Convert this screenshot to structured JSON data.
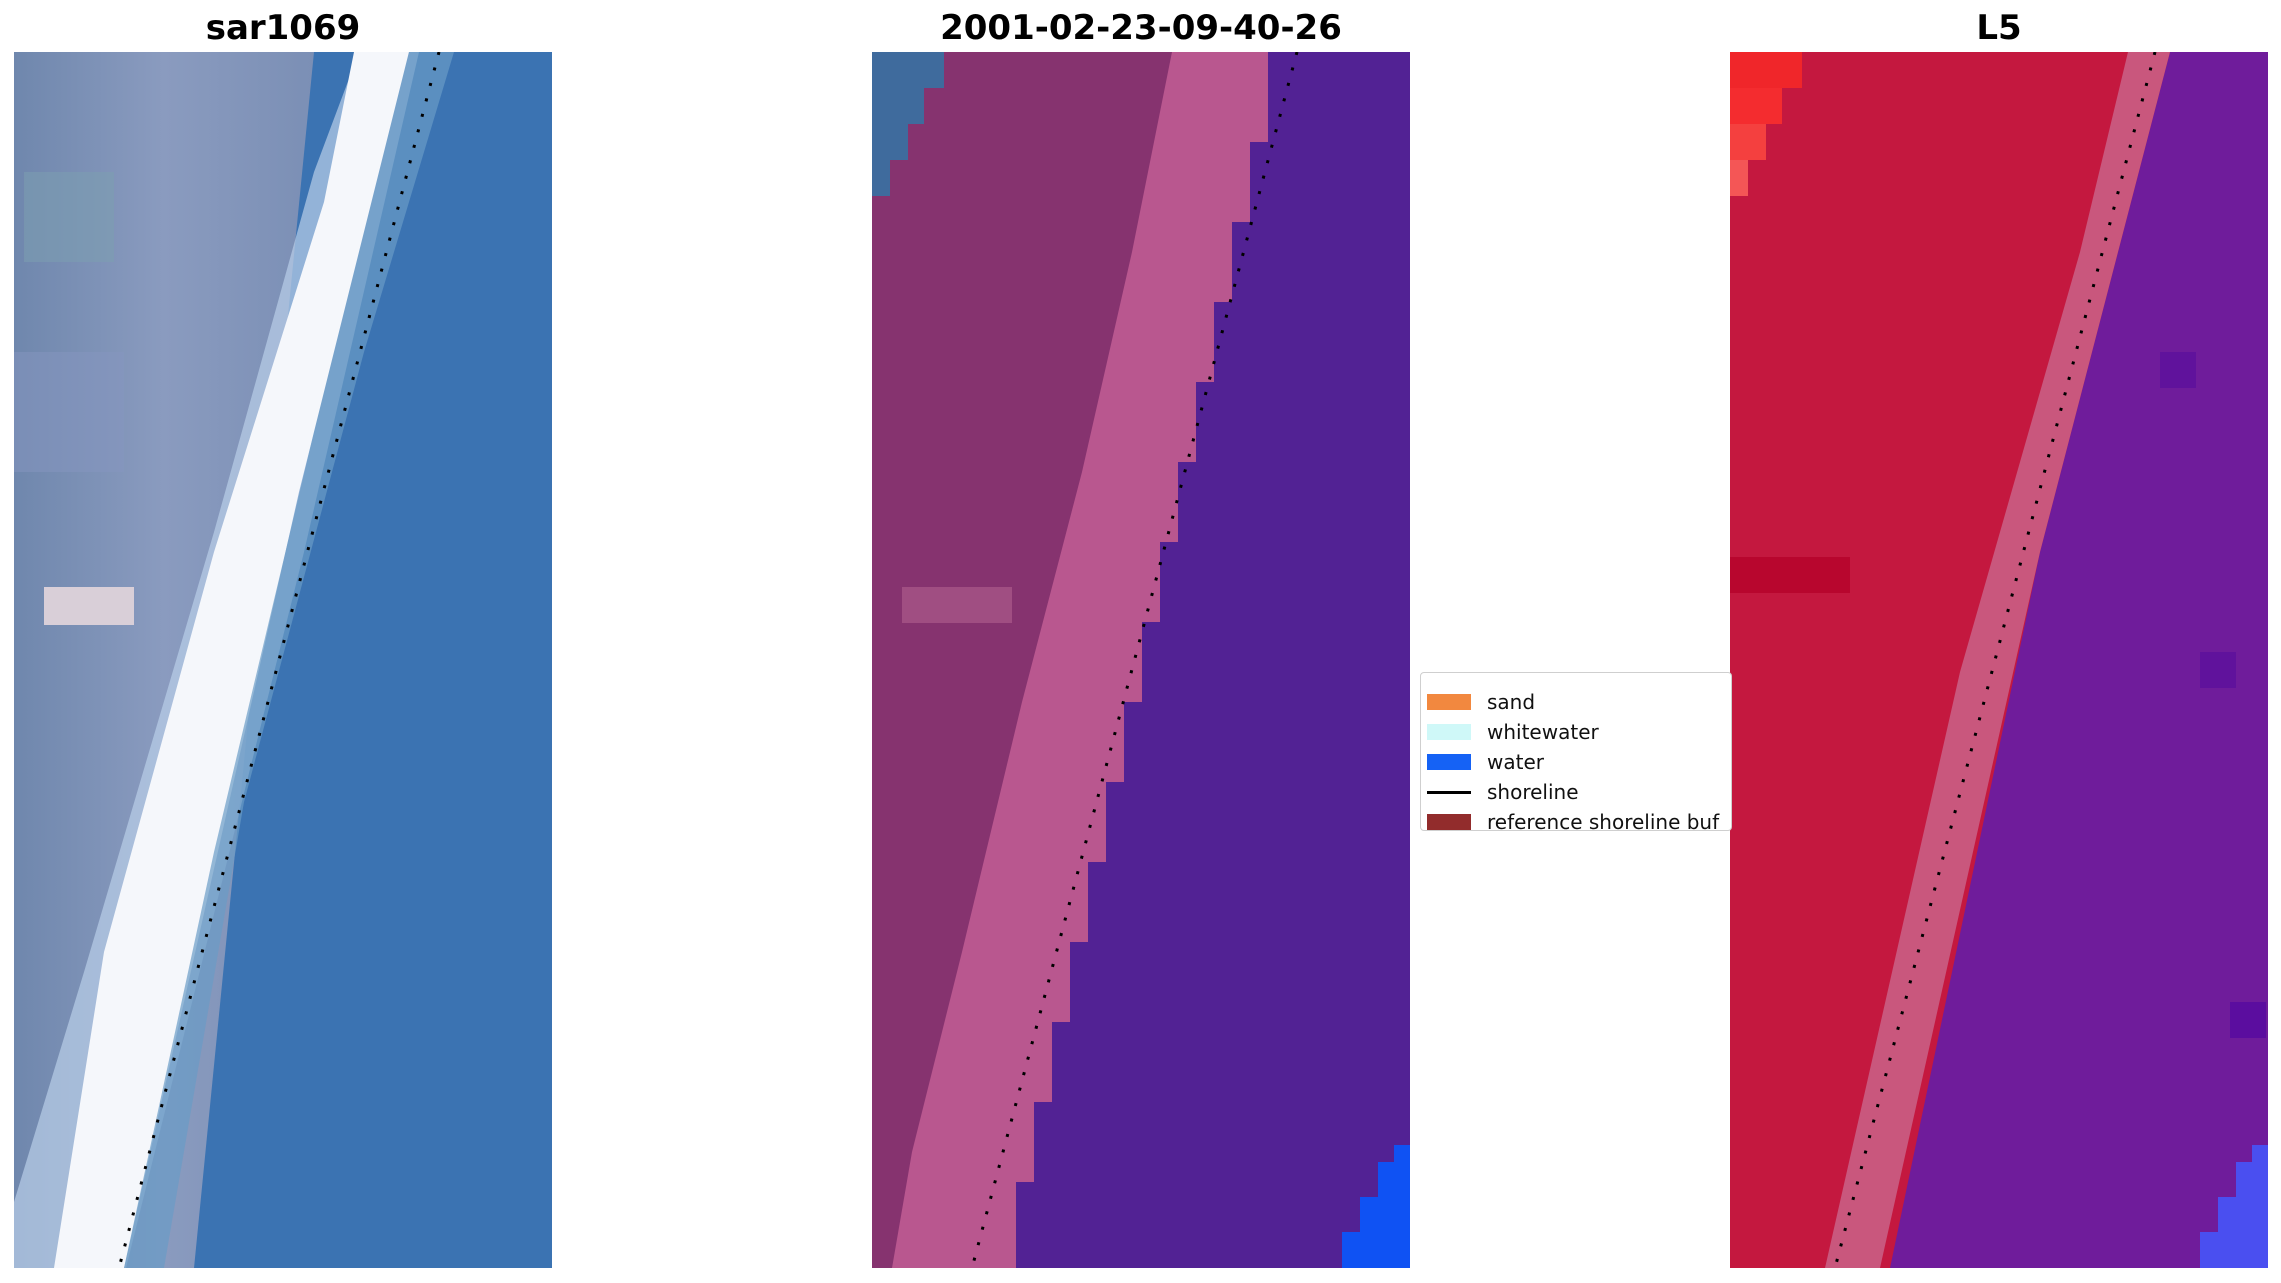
{
  "panels": [
    {
      "title": "sar1069"
    },
    {
      "title": "2001-02-23-09-40-26"
    },
    {
      "title": "L5"
    }
  ],
  "legend": {
    "items": [
      {
        "label": "sand",
        "color": "#f2883f",
        "type": "patch"
      },
      {
        "label": "whitewater",
        "color": "#cff8f8",
        "type": "patch"
      },
      {
        "label": "water",
        "color": "#1562f5",
        "type": "patch"
      },
      {
        "label": "shoreline",
        "color": "#000000",
        "type": "line"
      },
      {
        "label": "reference shoreline buf",
        "color": "#922c2c",
        "type": "patch"
      }
    ]
  }
}
